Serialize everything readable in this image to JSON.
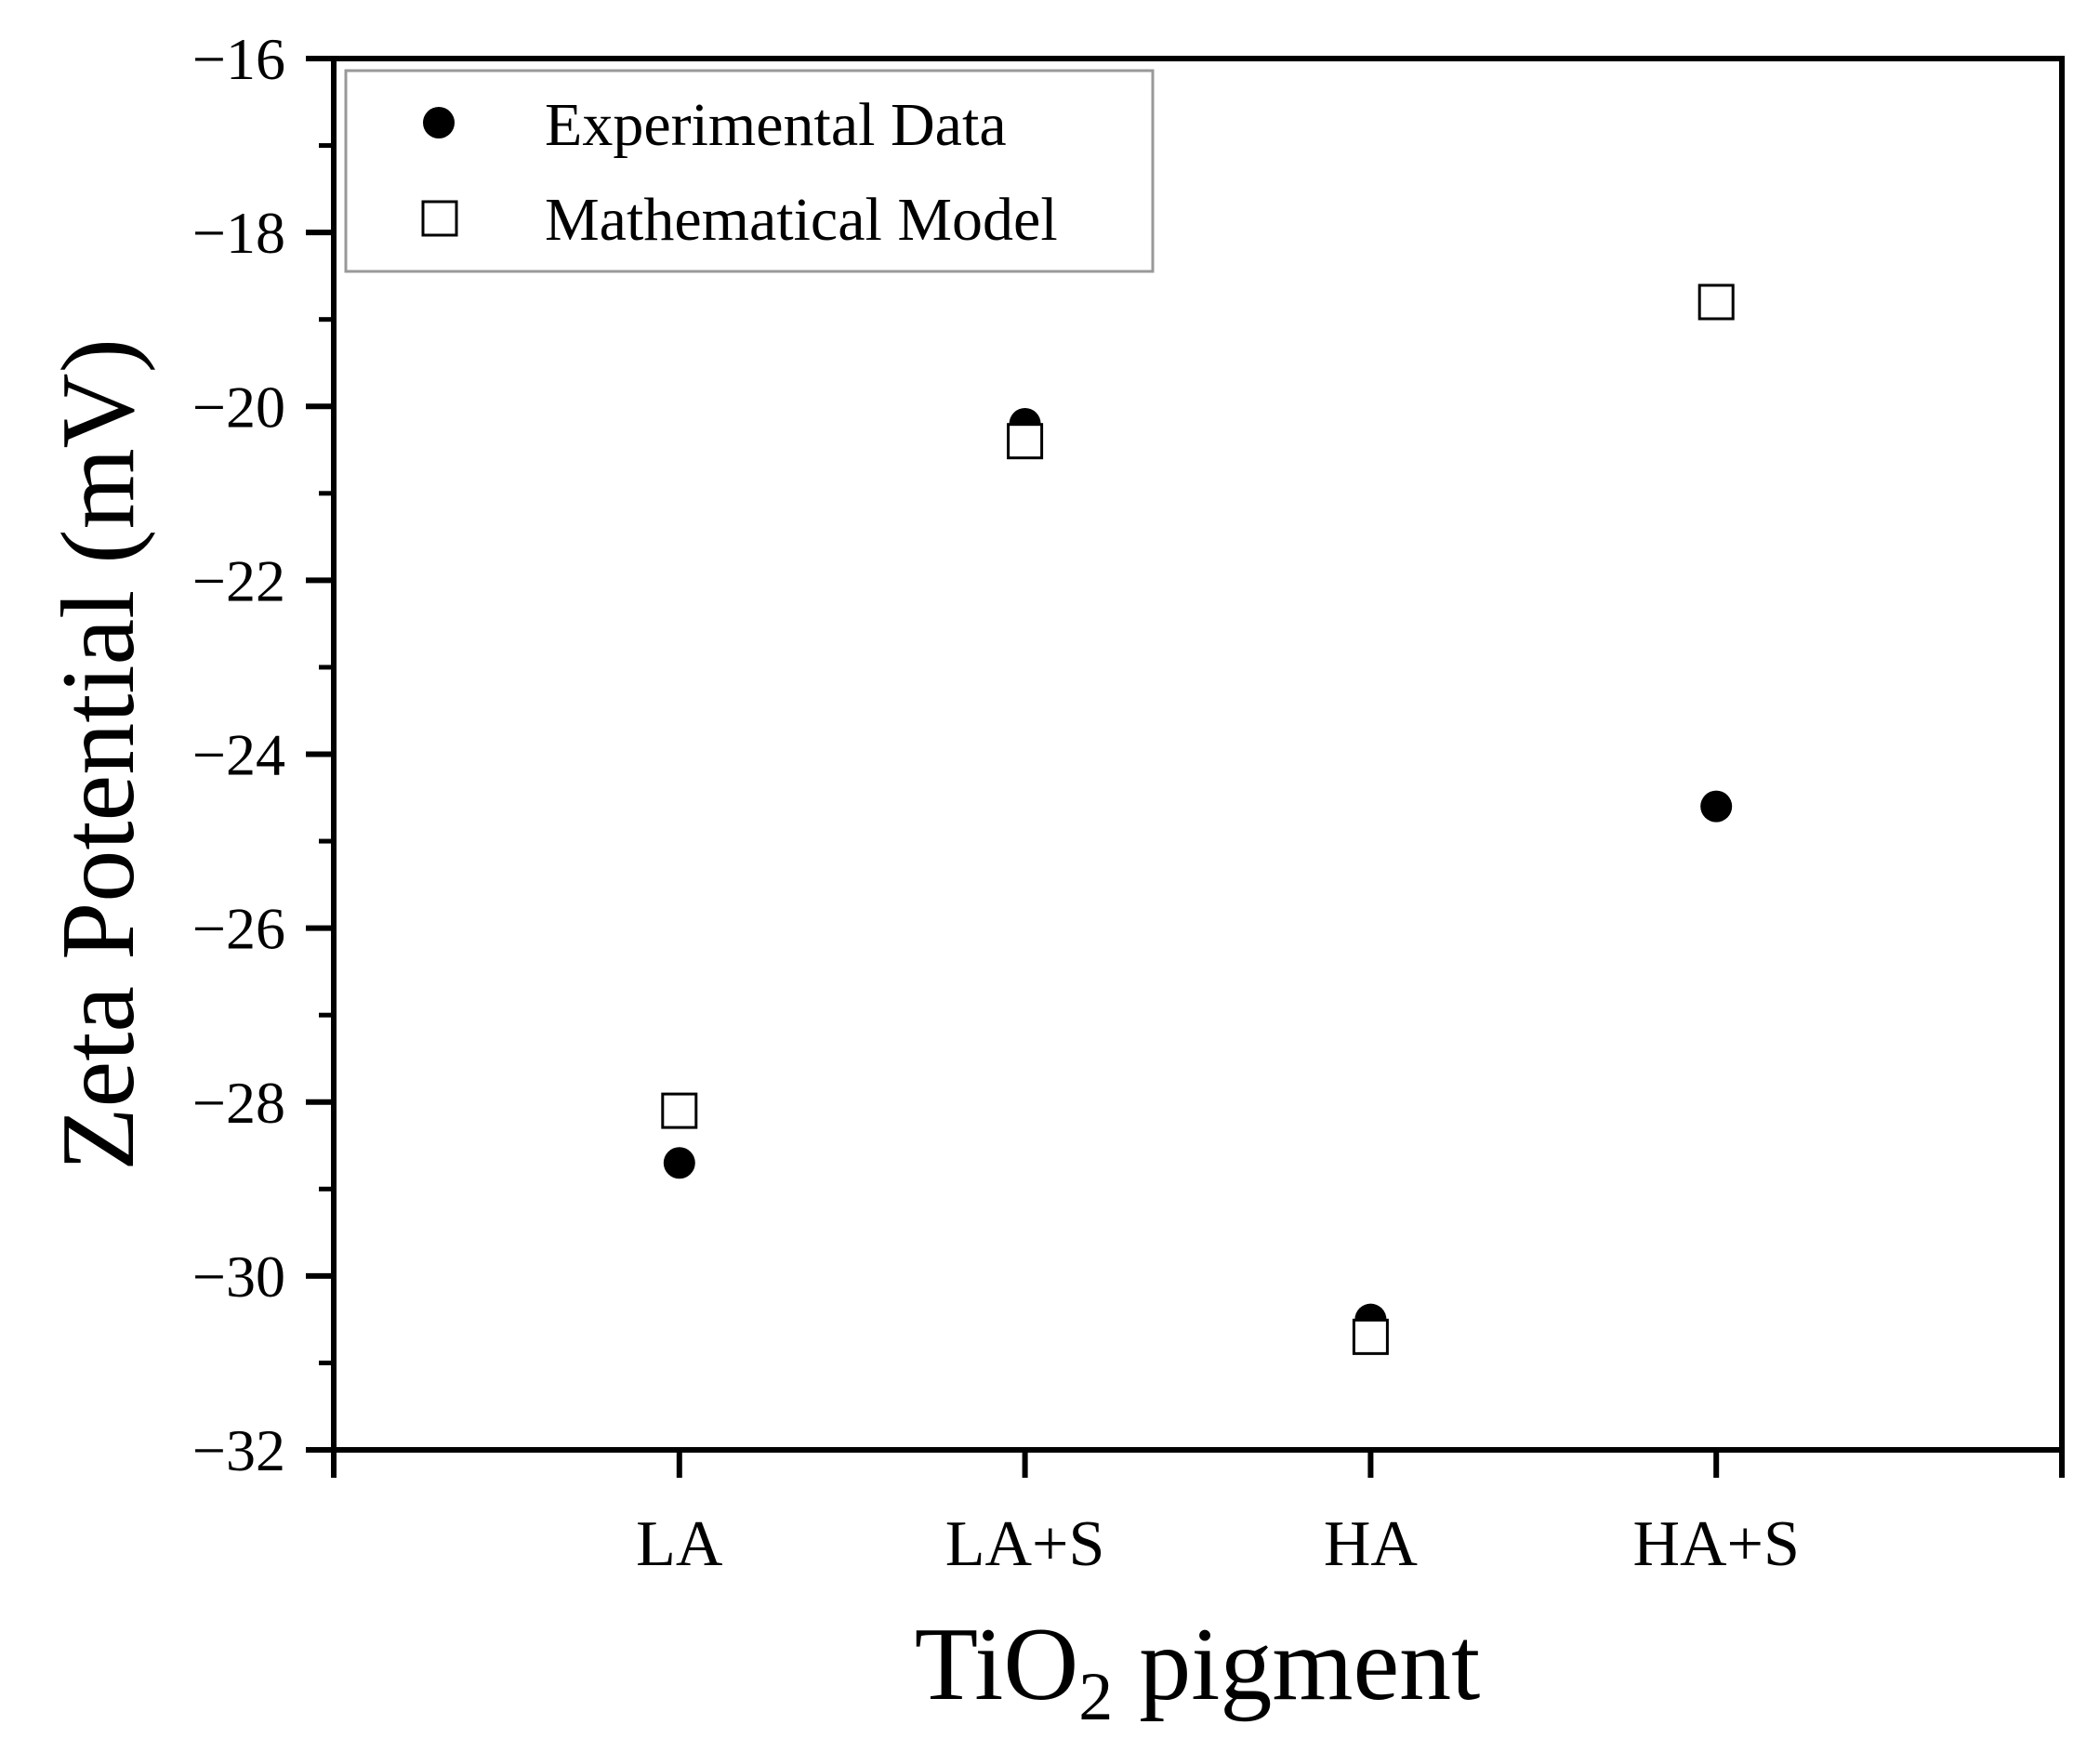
{
  "chart_data": {
    "type": "scatter",
    "title": "",
    "xlabel": {
      "main": "TiO",
      "sub": "2",
      "rest": " pigment"
    },
    "ylabel": "Zeta Potential (mV)",
    "categories": [
      "LA",
      "LA+S",
      "HA",
      "HA+S"
    ],
    "ylim": [
      -32,
      -16
    ],
    "yticks": [
      -16,
      -18,
      -20,
      -22,
      -24,
      -26,
      -28,
      -30,
      -32
    ],
    "ytick_labels": [
      "−16",
      "−18",
      "−20",
      "−22",
      "−24",
      "−26",
      "−28",
      "−30",
      "−32"
    ],
    "legend_position": "top-left",
    "series": [
      {
        "name": "Experimental Data",
        "marker": "filled-circle",
        "values": [
          -28.7,
          -20.2,
          -30.5,
          -24.6
        ]
      },
      {
        "name": "Mathematical Model",
        "marker": "open-square",
        "values": [
          -28.1,
          -20.4,
          -30.7,
          -18.8
        ]
      }
    ]
  }
}
